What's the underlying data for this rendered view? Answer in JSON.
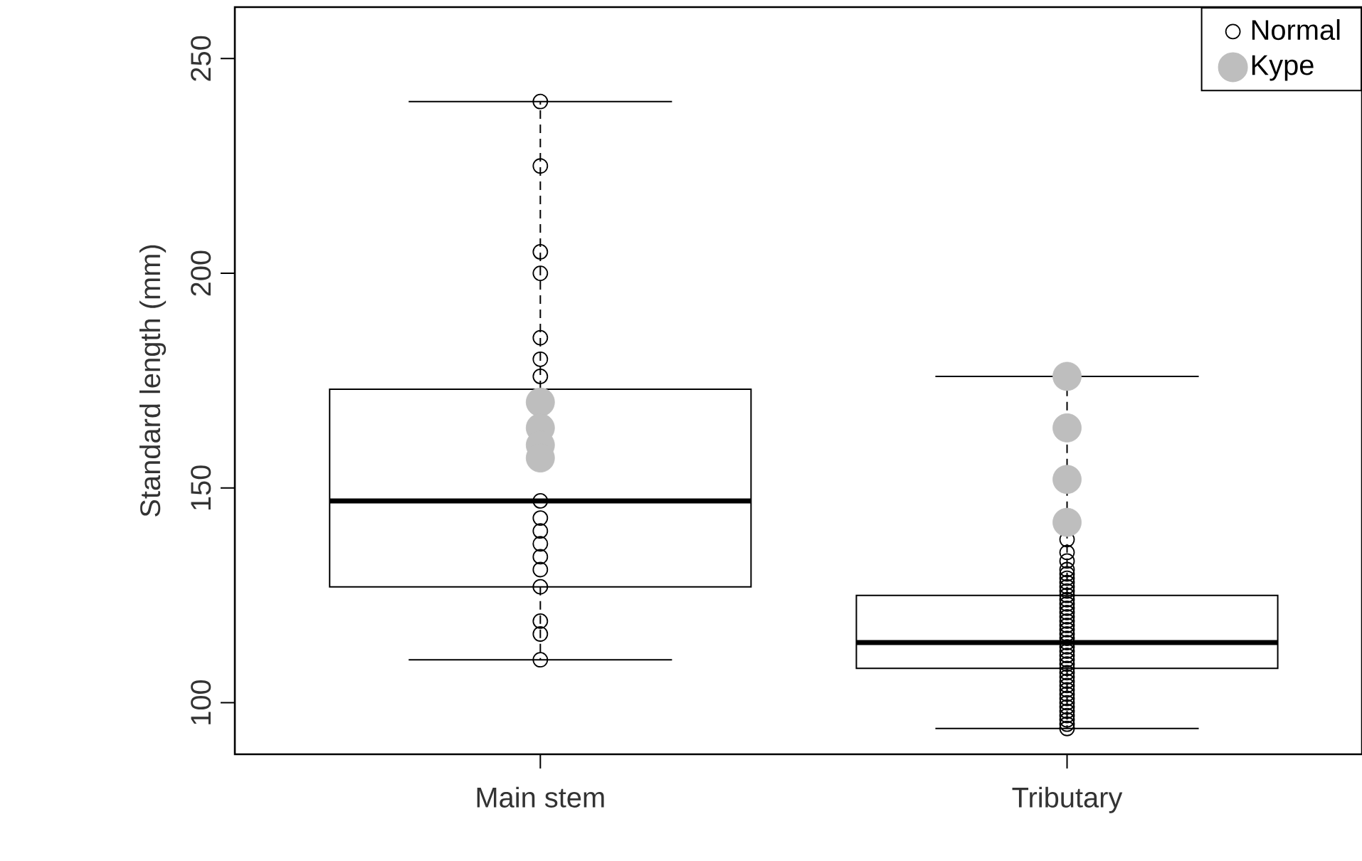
{
  "chart_data": {
    "type": "box",
    "ylabel": "Standard length (mm)",
    "categories": [
      "Main stem",
      "Tributary"
    ],
    "boxes": [
      {
        "low": 110,
        "q1": 127,
        "median": 147,
        "q3": 173,
        "high": 240
      },
      {
        "low": 94,
        "q1": 108,
        "median": 114,
        "q3": 125,
        "high": 176
      }
    ],
    "ylim": [
      88,
      262
    ],
    "yticks": [
      100,
      150,
      200,
      250
    ],
    "legend": "top right",
    "line_style": "dashed",
    "series": [
      {
        "name": "Normal",
        "type": "scatter",
        "color": "#000000",
        "marker": "circle",
        "x": [
          "Main stem",
          "Main stem",
          "Main stem",
          "Main stem",
          "Main stem",
          "Main stem",
          "Main stem",
          "Main stem",
          "Main stem",
          "Main stem",
          "Main stem",
          "Main stem",
          "Main stem",
          "Main stem",
          "Main stem",
          "Main stem",
          "Main stem",
          "Tributary",
          "Tributary",
          "Tributary",
          "Tributary",
          "Tributary",
          "Tributary",
          "Tributary",
          "Tributary",
          "Tributary",
          "Tributary",
          "Tributary",
          "Tributary",
          "Tributary",
          "Tributary",
          "Tributary",
          "Tributary",
          "Tributary",
          "Tributary",
          "Tributary",
          "Tributary",
          "Tributary",
          "Tributary",
          "Tributary",
          "Tributary",
          "Tributary",
          "Tributary",
          "Tributary",
          "Tributary",
          "Tributary",
          "Tributary",
          "Tributary",
          "Tributary",
          "Tributary",
          "Tributary",
          "Tributary",
          "Tributary",
          "Tributary",
          "Tributary",
          "Tributary",
          "Tributary",
          "Tributary"
        ],
        "values": [
          240,
          225,
          205,
          200,
          185,
          180,
          176,
          147,
          143,
          140,
          137,
          134,
          131,
          127,
          119,
          116,
          110,
          94,
          95,
          96,
          97,
          98,
          99,
          100,
          101,
          102,
          103,
          104,
          105,
          106,
          107,
          108,
          109,
          110,
          111,
          112,
          113,
          114,
          115,
          116,
          117,
          118,
          119,
          120,
          121,
          122,
          123,
          124,
          125,
          126,
          127,
          128,
          129,
          130,
          131,
          133,
          135,
          138
        ]
      },
      {
        "name": "Kype",
        "type": "scatter",
        "color": "#bebebe",
        "marker": "circle",
        "x": [
          "Main stem",
          "Main stem",
          "Main stem",
          "Main stem",
          "Tributary",
          "Tributary",
          "Tributary",
          "Tributary"
        ],
        "values": [
          170,
          164,
          160,
          157,
          176,
          164,
          152,
          142
        ]
      }
    ]
  }
}
